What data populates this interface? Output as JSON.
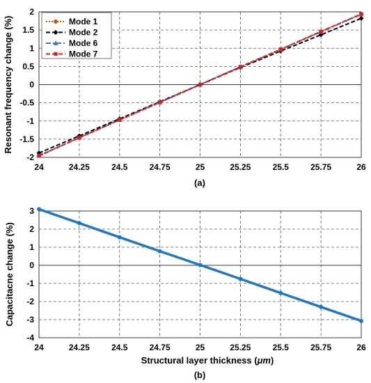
{
  "chart_data": [
    {
      "type": "line",
      "caption": "(a)",
      "xlabel": "",
      "ylabel": "Resonant frequency change (%)",
      "x": [
        24,
        24.25,
        24.5,
        24.75,
        25,
        25.25,
        25.5,
        25.75,
        26
      ],
      "xlim": [
        24,
        26
      ],
      "ylim": [
        -2,
        2
      ],
      "xticks": [
        "24",
        "24.25",
        "24.5",
        "24.75",
        "25",
        "25.25",
        "25.5",
        "25.75",
        "26"
      ],
      "yticks": [
        "-2",
        "-1.5",
        "-1",
        "-0.5",
        "0",
        "0.5",
        "1",
        "1.5",
        "2"
      ],
      "grid": true,
      "legend_position": "top-left",
      "series": [
        {
          "name": "Mode 1",
          "color": "#c55a11",
          "dash": "dotted",
          "marker": "circle",
          "values": [
            -1.95,
            -1.46,
            -0.97,
            -0.49,
            0,
            0.49,
            0.97,
            1.46,
            1.94
          ]
        },
        {
          "name": "Mode 2",
          "color": "#000000",
          "dash": "dashed",
          "marker": "diamond",
          "values": [
            -1.88,
            -1.41,
            -0.94,
            -0.47,
            0,
            0.47,
            0.92,
            1.37,
            1.82
          ]
        },
        {
          "name": "Mode 6",
          "color": "#4472c4",
          "dash": "dashdot",
          "marker": "triangle",
          "values": [
            -1.95,
            -1.46,
            -0.97,
            -0.48,
            0,
            0.48,
            0.96,
            1.45,
            1.93
          ]
        },
        {
          "name": "Mode 7",
          "color": "#e41a1c",
          "dash": "dashed",
          "marker": "square",
          "values": [
            -1.96,
            -1.46,
            -0.97,
            -0.49,
            0,
            0.49,
            0.97,
            1.46,
            1.94
          ]
        }
      ]
    },
    {
      "type": "line",
      "caption": "(b)",
      "xlabel": "Structural layer thickness (",
      "xlabel_unit": "μm",
      "xlabel_end": ")",
      "ylabel": "Capacitacne change (%)",
      "x": [
        24,
        24.25,
        24.5,
        24.75,
        25,
        25.25,
        25.5,
        25.75,
        26
      ],
      "xlim": [
        24,
        26
      ],
      "ylim": [
        -4,
        3
      ],
      "xticks": [
        "24",
        "24.25",
        "24.5",
        "24.75",
        "25",
        "25.25",
        "25.5",
        "25.75",
        "26"
      ],
      "yticks": [
        "-4",
        "-3",
        "-2",
        "-1",
        "0",
        "1",
        "2",
        "3"
      ],
      "grid": true,
      "series": [
        {
          "color": "#1f77c4",
          "marker": "circle",
          "values": [
            3.1,
            2.33,
            1.55,
            0.78,
            0.02,
            -0.75,
            -1.53,
            -2.3,
            -3.07
          ]
        }
      ]
    }
  ]
}
